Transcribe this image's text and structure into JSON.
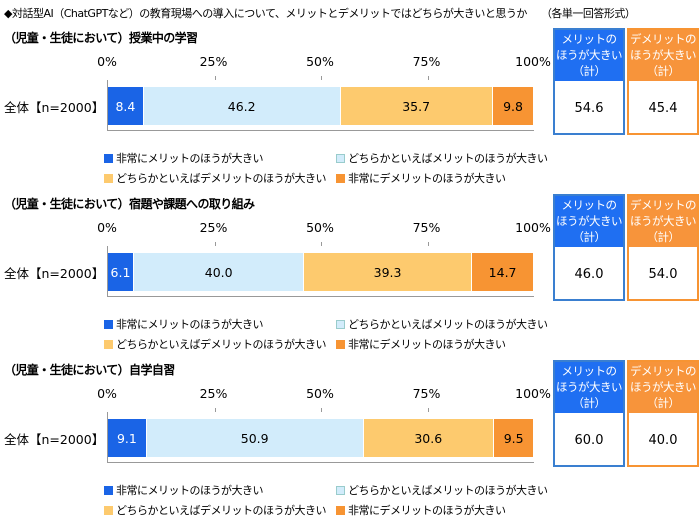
{
  "title": "◆対話型AI（ChatGPTなど）の教育現場への導入について、メリットとデメリットではどちらが大きいと思うか",
  "format_note": "（各単一回答形式）",
  "colors": {
    "very_merit": "#1a64e6",
    "somewhat_merit": "#d2ecfb",
    "somewhat_demerit": "#fdca6e",
    "very_demerit": "#f79433",
    "merit_box": "#1f6ff2",
    "demerit_box": "#f7943b"
  },
  "legend": [
    "非常にメリットのほうが大きい",
    "どちらかといえばメリットのほうが大きい",
    "どちらかといえばデメリットのほうが大きい",
    "非常にデメリットのほうが大きい"
  ],
  "summary_headers": {
    "merit": "メリットの ほうが大きい （計）",
    "demerit": "デメリットの ほうが大きい （計）"
  },
  "chart_data": [
    {
      "type": "bar",
      "orientation": "horizontal",
      "stacked": true,
      "title": "（児童・生徒において）授業中の学習",
      "categories": [
        "全体【n=2000】"
      ],
      "xlim": [
        0,
        100
      ],
      "ticks": [
        "0%",
        "25%",
        "50%",
        "75%",
        "100%"
      ],
      "series": [
        {
          "name": "非常にメリットのほうが大きい",
          "values": [
            8.4
          ]
        },
        {
          "name": "どちらかといえばメリットのほうが大きい",
          "values": [
            46.2
          ]
        },
        {
          "name": "どちらかといえばデメリットのほうが大きい",
          "values": [
            35.7
          ]
        },
        {
          "name": "非常にデメリットのほうが大きい",
          "values": [
            9.8
          ]
        }
      ],
      "summary": {
        "merit": "54.6",
        "demerit": "45.4"
      }
    },
    {
      "type": "bar",
      "orientation": "horizontal",
      "stacked": true,
      "title": "（児童・生徒において）宿題や課題への取り組み",
      "categories": [
        "全体【n=2000】"
      ],
      "xlim": [
        0,
        100
      ],
      "ticks": [
        "0%",
        "25%",
        "50%",
        "75%",
        "100%"
      ],
      "series": [
        {
          "name": "非常にメリットのほうが大きい",
          "values": [
            6.1
          ]
        },
        {
          "name": "どちらかといえばメリットのほうが大きい",
          "values": [
            40.0
          ]
        },
        {
          "name": "どちらかといえばデメリットのほうが大きい",
          "values": [
            39.3
          ]
        },
        {
          "name": "非常にデメリットのほうが大きい",
          "values": [
            14.7
          ]
        }
      ],
      "summary": {
        "merit": "46.0",
        "demerit": "54.0"
      }
    },
    {
      "type": "bar",
      "orientation": "horizontal",
      "stacked": true,
      "title": "（児童・生徒において）自学自習",
      "categories": [
        "全体【n=2000】"
      ],
      "xlim": [
        0,
        100
      ],
      "ticks": [
        "0%",
        "25%",
        "50%",
        "75%",
        "100%"
      ],
      "series": [
        {
          "name": "非常にメリットのほうが大きい",
          "values": [
            9.1
          ]
        },
        {
          "name": "どちらかといえばメリットのほうが大きい",
          "values": [
            50.9
          ]
        },
        {
          "name": "どちらかといえばデメリットのほうが大きい",
          "values": [
            30.6
          ]
        },
        {
          "name": "非常にデメリットのほうが大きい",
          "values": [
            9.5
          ]
        }
      ],
      "summary": {
        "merit": "60.0",
        "demerit": "40.0"
      }
    }
  ]
}
